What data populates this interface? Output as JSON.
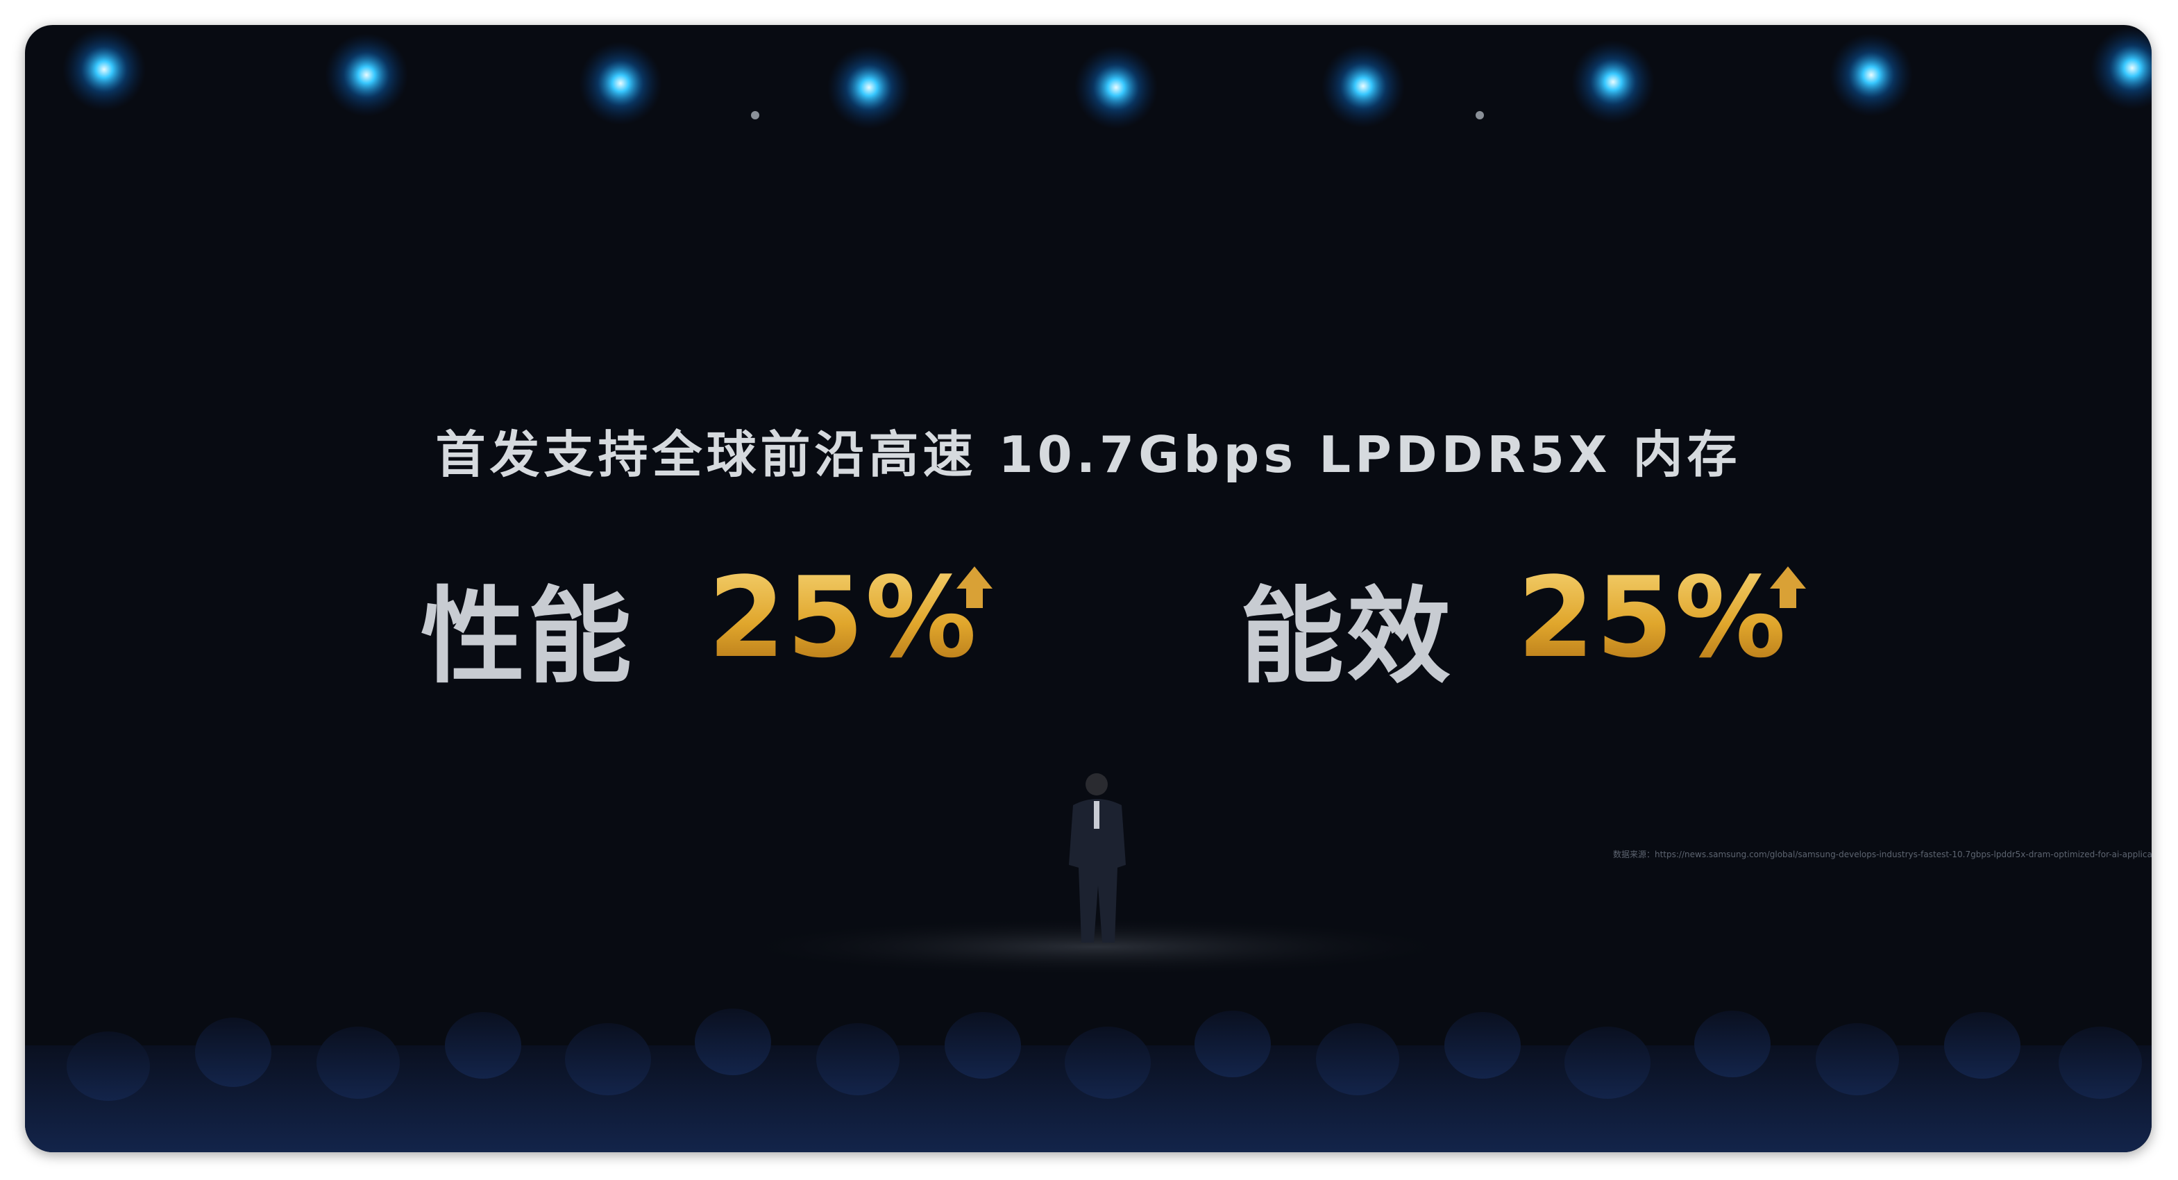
{
  "slide": {
    "headline": "首发支持全球前沿高速 10.7Gbps LPDDR5X 内存",
    "metrics": [
      {
        "label": "性能",
        "value": "25%"
      },
      {
        "label": "能效",
        "value": "25%"
      }
    ],
    "source": "数据来源：https://news.samsung.com/global/samsung-develops-industrys-fastest-10.7gbps-lpddr5x-dram-optimized-for-ai-applications"
  }
}
